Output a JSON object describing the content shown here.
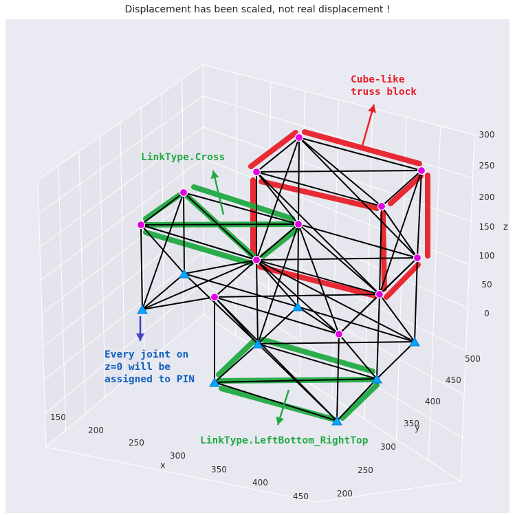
{
  "title": "Displacement has been scaled, not real displacement !",
  "axes": {
    "x_label": "x",
    "y_label": "y",
    "z_label": "z",
    "x_ticks": [
      "150",
      "200",
      "250",
      "300",
      "350",
      "400",
      "450"
    ],
    "y_ticks": [
      "200",
      "250",
      "300",
      "350",
      "400",
      "450",
      "500"
    ],
    "z_ticks": [
      "0",
      "50",
      "100",
      "150",
      "200",
      "250",
      "300"
    ]
  },
  "annotations": {
    "cube": "Cube-like\ntruss block",
    "cross": "LinkType.Cross",
    "pin": "Every joint on\nz=0 will be\nassigned to PIN",
    "lbrt": "LinkType.LeftBottom_RightTop"
  },
  "colors": {
    "pane": "#eaeaf2",
    "grid": "#ffffff",
    "member": "#000000",
    "node": "#e000e0",
    "support": "#00a6ff",
    "cube_highlight": "#e8202a",
    "link_highlight": "#22aa44",
    "pin_note": "#1060c0",
    "pin_arrow": "#4040c8"
  }
}
